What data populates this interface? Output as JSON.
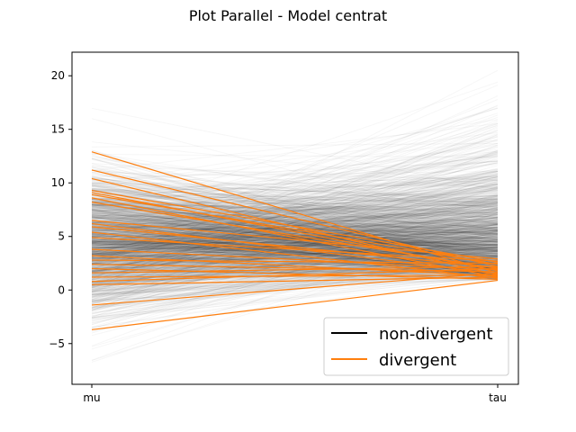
{
  "chart_data": {
    "type": "parallel-coordinates",
    "title": "Plot Parallel - Model centrat",
    "axes": [
      "mu",
      "tau"
    ],
    "ylim": [
      -8.8,
      22.2
    ],
    "yticks": [
      -5,
      0,
      5,
      10,
      15,
      20
    ],
    "grid": false,
    "legend": {
      "placement": "lower-right",
      "entries": [
        {
          "label": "non-divergent",
          "color": "#000000"
        },
        {
          "label": "divergent",
          "color": "#ff7f0e"
        }
      ]
    },
    "series": [
      {
        "name": "divergent",
        "color": "#ff7f0e",
        "lines": [
          {
            "mu": 12.9,
            "tau": 1.6
          },
          {
            "mu": 11.2,
            "tau": 2.2
          },
          {
            "mu": 10.4,
            "tau": 1.4
          },
          {
            "mu": 9.3,
            "tau": 2.6
          },
          {
            "mu": 9.1,
            "tau": 1.8
          },
          {
            "mu": 8.9,
            "tau": 2.4
          },
          {
            "mu": 8.6,
            "tau": 1.2
          },
          {
            "mu": 8.2,
            "tau": 2.0
          },
          {
            "mu": 6.5,
            "tau": 2.9
          },
          {
            "mu": 6.2,
            "tau": 1.5
          },
          {
            "mu": 5.9,
            "tau": 2.1
          },
          {
            "mu": 5.4,
            "tau": 1.1
          },
          {
            "mu": 4.9,
            "tau": 2.7
          },
          {
            "mu": 3.8,
            "tau": 1.9
          },
          {
            "mu": 3.2,
            "tau": 1.3
          },
          {
            "mu": 2.8,
            "tau": 2.5
          },
          {
            "mu": 2.4,
            "tau": 1.7
          },
          {
            "mu": 2.0,
            "tau": 1.0
          },
          {
            "mu": 1.6,
            "tau": 2.2
          },
          {
            "mu": 1.2,
            "tau": 1.4
          },
          {
            "mu": 0.8,
            "tau": 2.0
          },
          {
            "mu": 0.5,
            "tau": 1.2
          },
          {
            "mu": -1.4,
            "tau": 1.6
          },
          {
            "mu": -3.7,
            "tau": 0.9
          }
        ]
      }
    ],
    "non_divergent_summary": {
      "mu_range": [
        -7.5,
        18.0
      ],
      "tau_range": [
        0.9,
        20.5
      ]
    }
  }
}
